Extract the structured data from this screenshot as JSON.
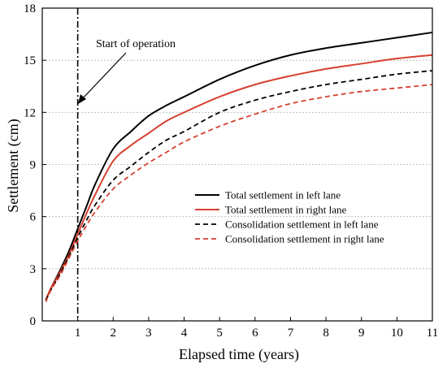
{
  "chart_data": {
    "type": "line",
    "xlabel": "Elapsed time (years)",
    "ylabel": "Settlement (cm)",
    "xlim": [
      0,
      11
    ],
    "ylim": [
      0,
      18
    ],
    "xticks": [
      1,
      2,
      3,
      4,
      5,
      6,
      7,
      8,
      9,
      10,
      11
    ],
    "yticks": [
      0,
      3,
      6,
      9,
      12,
      15,
      18
    ],
    "grid": "horizontal dotted",
    "legend_position": "center-right",
    "annotation": {
      "text": "Start of operation",
      "x": 1,
      "y": 12.6
    },
    "vline_x": 1,
    "x": [
      0.1,
      0.25,
      0.5,
      0.75,
      1,
      1.25,
      1.5,
      2,
      2.5,
      3,
      3.5,
      4,
      5,
      6,
      7,
      8,
      9,
      10,
      11
    ],
    "series": [
      {
        "name": "Total settlement in left lane",
        "color": "#000000",
        "dash": "solid",
        "values": [
          1.2,
          1.9,
          2.9,
          4.0,
          5.3,
          6.6,
          7.9,
          9.9,
          10.9,
          11.8,
          12.4,
          12.9,
          13.9,
          14.7,
          15.3,
          15.7,
          16.0,
          16.3,
          16.6
        ]
      },
      {
        "name": "Total settlement in right lane",
        "color": "#d6402f",
        "dash": "solid",
        "values": [
          1.2,
          1.9,
          2.8,
          3.8,
          5.0,
          6.2,
          7.3,
          9.2,
          10.1,
          10.8,
          11.5,
          12.0,
          12.9,
          13.6,
          14.1,
          14.5,
          14.8,
          15.1,
          15.3
        ]
      },
      {
        "name": "Consolidation settlement in left lane",
        "color": "#000000",
        "dash": "dashed",
        "values": [
          1.2,
          1.8,
          2.7,
          3.7,
          4.8,
          5.8,
          6.7,
          8.1,
          8.9,
          9.7,
          10.4,
          10.9,
          12.0,
          12.7,
          13.2,
          13.6,
          13.9,
          14.2,
          14.4
        ]
      },
      {
        "name": "Consolidation settlement in right lane",
        "color": "#d6402f",
        "dash": "dashed",
        "values": [
          1.1,
          1.8,
          2.6,
          3.6,
          4.6,
          5.5,
          6.3,
          7.6,
          8.4,
          9.1,
          9.7,
          10.3,
          11.2,
          11.9,
          12.5,
          12.9,
          13.2,
          13.4,
          13.6
        ]
      }
    ]
  }
}
